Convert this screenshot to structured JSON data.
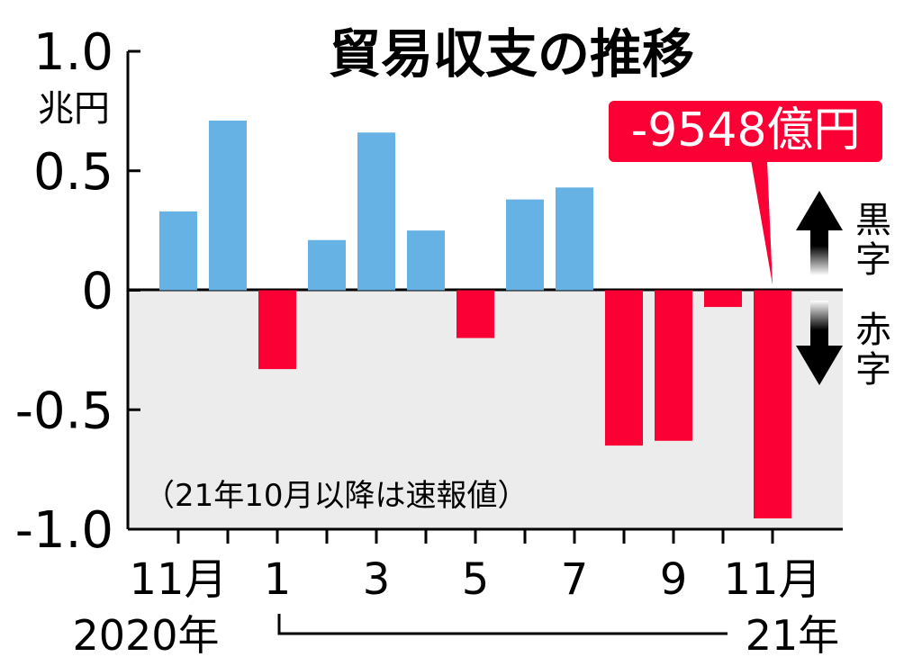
{
  "chart_data": {
    "type": "bar",
    "title": "貿易収支の推移",
    "unit_label": "兆円",
    "ylim": [
      -1.0,
      1.0
    ],
    "y_ticks": [
      {
        "value": 1.0,
        "label": "1.0"
      },
      {
        "value": 0.5,
        "label": "0.5"
      },
      {
        "value": 0,
        "label": "0"
      },
      {
        "value": -0.5,
        "label": "-0.5"
      },
      {
        "value": -1.0,
        "label": "-1.0"
      }
    ],
    "categories": [
      "2020-11",
      "2020-12",
      "2021-01",
      "2021-02",
      "2021-03",
      "2021-04",
      "2021-05",
      "2021-06",
      "2021-07",
      "2021-08",
      "2021-09",
      "2021-10",
      "2021-11"
    ],
    "values": [
      0.33,
      0.71,
      -0.33,
      0.21,
      0.66,
      0.25,
      -0.2,
      0.38,
      0.43,
      -0.65,
      -0.63,
      -0.07,
      -0.9548
    ],
    "x_tick_labels": [
      "11月",
      "",
      "1",
      "",
      "3",
      "",
      "5",
      "",
      "7",
      "",
      "9",
      "",
      "11月"
    ],
    "year_labels": {
      "start": "2020年",
      "end": "21年"
    },
    "callout": {
      "text": "-9548億円",
      "index": 12
    },
    "side_labels": {
      "surplus": "黒字",
      "deficit": "赤字"
    },
    "note": "（21年10月以降は速報値）",
    "colors": {
      "positive": "#67b2e4",
      "negative": "#fa0035",
      "negative_area": "#ececec",
      "callout_bg": "#fa0035",
      "callout_text": "#ffffff"
    }
  }
}
